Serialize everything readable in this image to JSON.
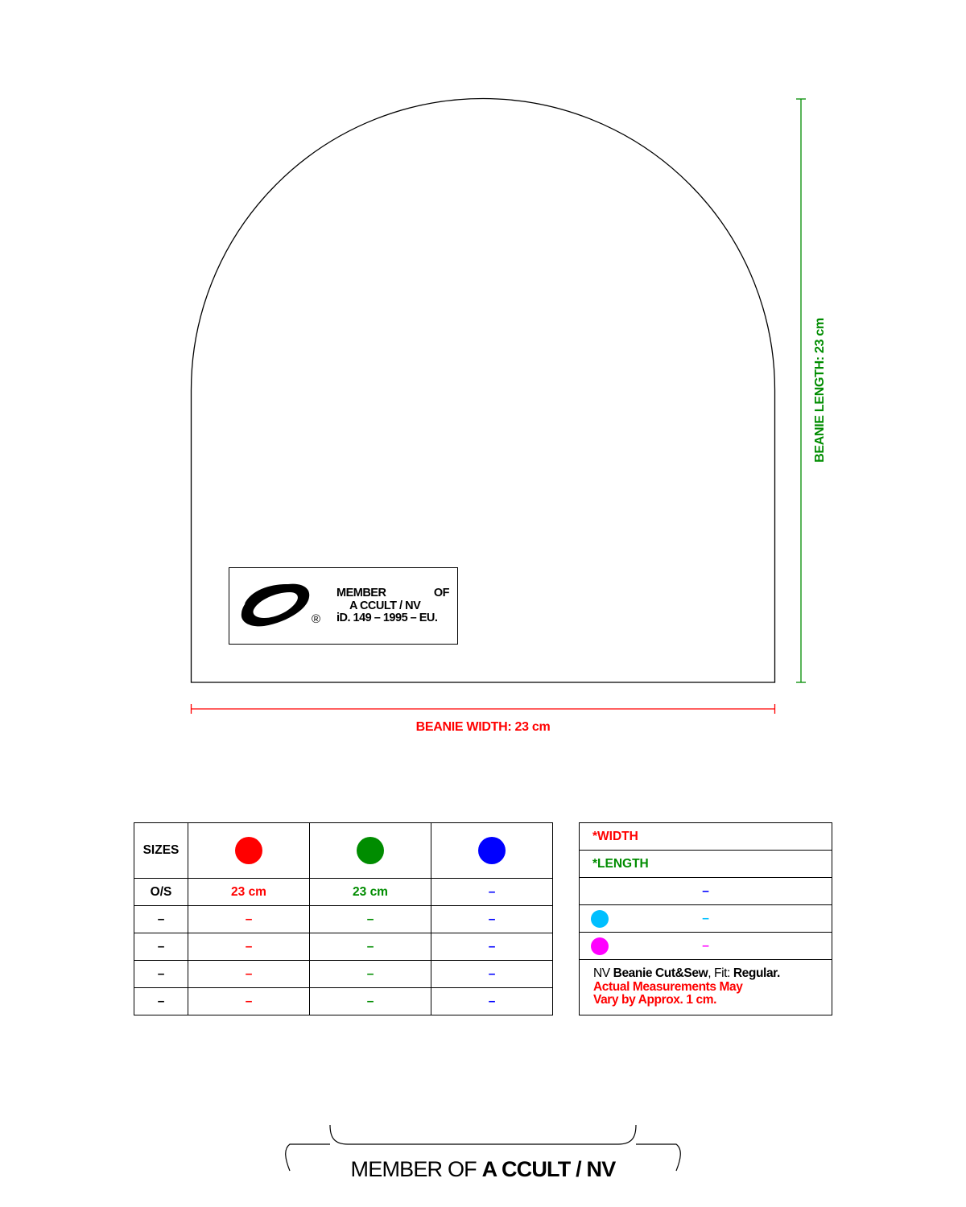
{
  "colors": {
    "width": "#ff0000",
    "length": "#008c00",
    "blue": "#0000ff",
    "cyan": "#00bfff",
    "magenta": "#ff00ff",
    "outline": "#000000"
  },
  "dimensions": {
    "width_label": "BEANIE WIDTH: 23 cm",
    "length_label": "BEANIE LENGTH: 23 cm"
  },
  "tag": {
    "logo_icon": "ccult-swirl-logo",
    "line1_left": "MEMBER",
    "line1_right": "OF",
    "line2": "A CCULT / NV",
    "line3": "iD. 149 – 1995 – EU.",
    "registered": "®"
  },
  "sizes_table": {
    "header_label": "SIZES",
    "header_dots": [
      "red-dot",
      "green-dot",
      "blue-dot"
    ],
    "rows": [
      {
        "size": "O/S",
        "width": "23 cm",
        "length": "23 cm",
        "third": "–"
      },
      {
        "size": "–",
        "width": "–",
        "length": "–",
        "third": "–"
      },
      {
        "size": "–",
        "width": "–",
        "length": "–",
        "third": "–"
      },
      {
        "size": "–",
        "width": "–",
        "length": "–",
        "third": "–"
      },
      {
        "size": "–",
        "width": "–",
        "length": "–",
        "third": "–"
      }
    ]
  },
  "legend": {
    "width_item": "*WIDTH",
    "length_item": "*LENGTH",
    "blue_item": "–",
    "cyan_item": "–",
    "magenta_item": "–",
    "note": {
      "brand": "NV",
      "product": "Beanie Cut&Sew",
      "fit_label": ", Fit: ",
      "fit_value": "Regular.",
      "warning_line1": "Actual Measurements May",
      "warning_line2": "Vary by Approx. 1 cm."
    }
  },
  "footer": {
    "prefix": "MEMBER OF ",
    "name": "A CCULT / NV"
  }
}
